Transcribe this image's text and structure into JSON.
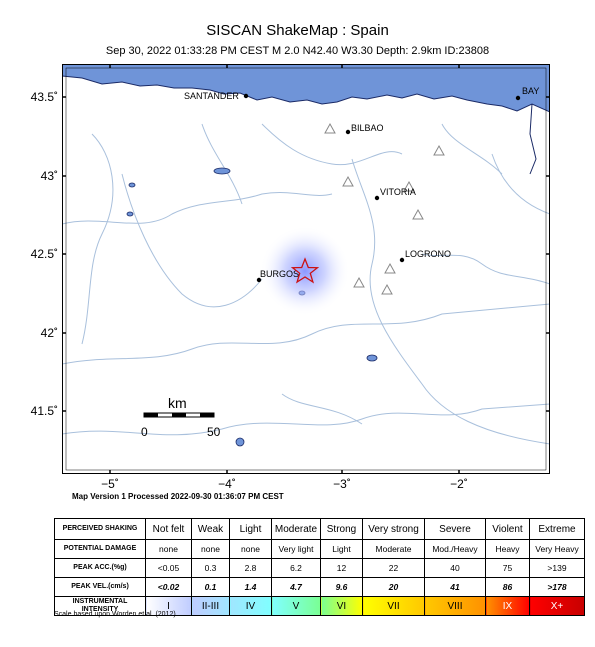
{
  "header": {
    "title": "SISCAN ShakeMap : Spain",
    "subtitle": "Sep 30, 2022 01:33:28 PM CEST   M 2.0   N42.40 W3.30   Depth: 2.9km   ID:23808"
  },
  "map": {
    "lat_ticks": [
      "43.5˚",
      "43˚",
      "42.5˚",
      "42˚",
      "41.5˚"
    ],
    "lon_ticks": [
      "−5˚",
      "−4˚",
      "−3˚",
      "−2˚"
    ],
    "cities": [
      {
        "name": "SANTANDER"
      },
      {
        "name": "BAY"
      },
      {
        "name": "BILBAO"
      },
      {
        "name": "VITORIA"
      },
      {
        "name": "LOGRONO"
      },
      {
        "name": "BURGOS"
      }
    ],
    "scale": {
      "unit": "km",
      "start": "0",
      "end": "50"
    },
    "epicenter_icon": "star-icon",
    "station_icon": "triangle-icon",
    "colors": {
      "sea": "#6f94d8",
      "coast": "#1a2a66",
      "rivers": "#a9c0dc",
      "star": "#cc1111",
      "intensity_glow": "#9aa8ff"
    }
  },
  "version_line": "Map Version 1 Processed 2022-09-30 01:36:07 PM CEST",
  "legend": {
    "rows": [
      {
        "head": "PERCEIVED SHAKING",
        "cells": [
          "Not felt",
          "Weak",
          "Light",
          "Moderate",
          "Strong",
          "Very strong",
          "Severe",
          "Violent",
          "Extreme"
        ]
      },
      {
        "head": "POTENTIAL DAMAGE",
        "cells": [
          "none",
          "none",
          "none",
          "Very light",
          "Light",
          "Moderate",
          "Mod./Heavy",
          "Heavy",
          "Very Heavy"
        ]
      },
      {
        "head": "PEAK ACC.(%g)",
        "cells": [
          "<0.05",
          "0.3",
          "2.8",
          "6.2",
          "12",
          "22",
          "40",
          "75",
          ">139"
        ]
      },
      {
        "head": "PEAK VEL.(cm/s)",
        "cells": [
          "<0.02",
          "0.1",
          "1.4",
          "4.7",
          "9.6",
          "20",
          "41",
          "86",
          ">178"
        ]
      },
      {
        "head": "INSTRUMENTAL INTENSITY",
        "cells": [
          "I",
          "II-III",
          "IV",
          "V",
          "VI",
          "VII",
          "VIII",
          "IX",
          "X+"
        ]
      }
    ],
    "intensity_colors": [
      "#ffffff",
      "#bfccff",
      "#a0e6ff",
      "#80ffff",
      "#7aff93",
      "#ffff00",
      "#ffc800",
      "#ff9100",
      "#ff0000",
      "#c80000"
    ],
    "scale_note": "Scale based upon Worden et al. (2012)"
  }
}
